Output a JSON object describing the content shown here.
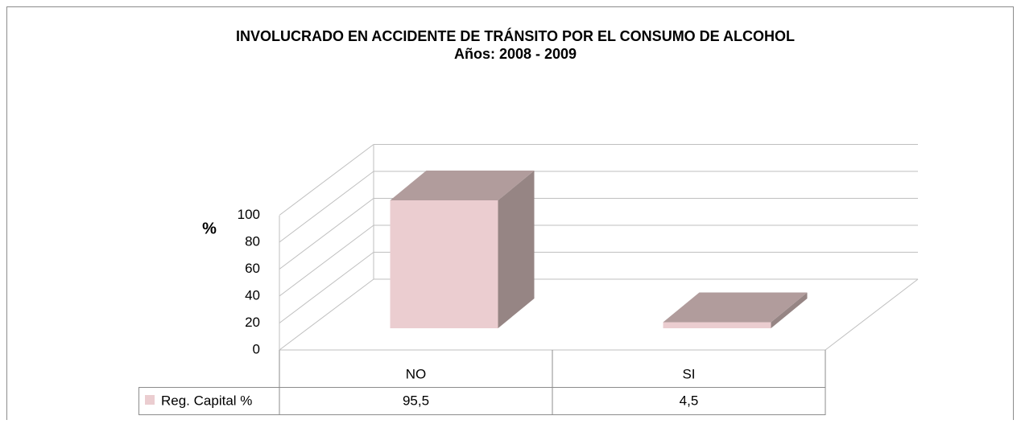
{
  "chart_data": {
    "type": "bar3d",
    "title": "INVOLUCRADO  EN ACCIDENTE  DE TRÁNSITO POR EL CONSUMO  DE  ALCOHOL",
    "subtitle": "Años: 2008  - 2009",
    "y_label": "%",
    "categories": [
      "NO",
      "SI"
    ],
    "series": [
      {
        "name": "Reg. Capital  %",
        "color": "#ebcdd0",
        "values": [
          95.5,
          4.5
        ],
        "value_labels": [
          "95,5",
          "4,5"
        ]
      }
    ],
    "ylim": [
      0,
      100
    ],
    "yticks": [
      0,
      20,
      40,
      60,
      80,
      100
    ],
    "grid": true
  }
}
